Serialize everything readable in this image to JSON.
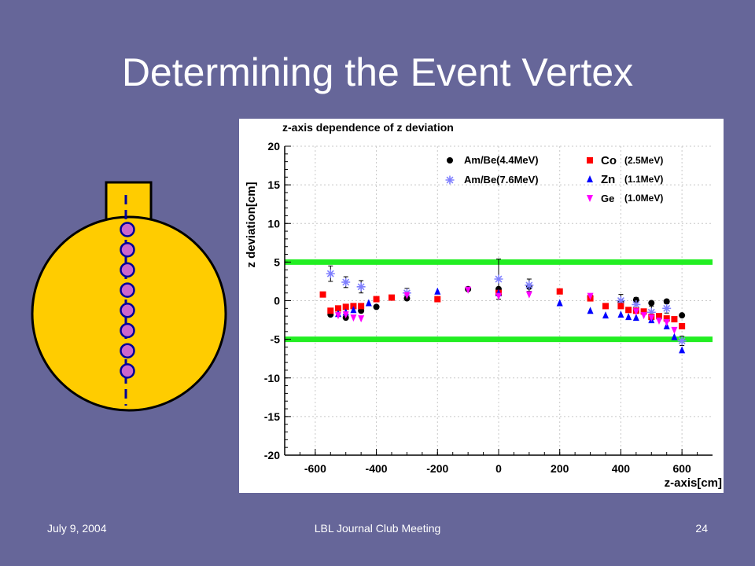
{
  "slide": {
    "title": "Determining the Event Vertex",
    "footer_date": "July 9, 2004",
    "footer_meeting": "LBL Journal Club Meeting",
    "footer_page": "24"
  },
  "colors": {
    "background": "#666699",
    "detector_fill": "#ffcc00",
    "marker_fill": "#cc66cc",
    "axis_line": "#000099",
    "band": "#22ee22"
  },
  "chart_data": {
    "type": "scatter",
    "title": "z-axis dependence of z deviation",
    "xlabel": "z-axis[cm]",
    "ylabel": "z deviation[cm]",
    "xlim": [
      -700,
      700
    ],
    "ylim": [
      -20,
      20
    ],
    "xticks": [
      "-600",
      "-400",
      "-200",
      "0",
      "200",
      "400",
      "600"
    ],
    "yticks": [
      "20",
      "15",
      "10",
      "5",
      "0",
      "-5",
      "-10",
      "-15",
      "-20"
    ],
    "grid": true,
    "reference_lines": [
      5,
      -5
    ],
    "legend": [
      {
        "series": "Am/Be(4.4MeV)",
        "symbol": "●",
        "label": "Am/Be(4.4MeV)",
        "color": "#000000",
        "element": "",
        "energy": ""
      },
      {
        "series": "Am/Be(7.6MeV)",
        "symbol": "✳",
        "label": "Am/Be(7.6MeV)",
        "color": "#8080ff",
        "element": "",
        "energy": ""
      },
      {
        "series": "Co",
        "symbol": "■",
        "label": "",
        "color": "#ff0000",
        "element": "Co",
        "energy": "(2.5MeV)"
      },
      {
        "series": "Zn",
        "symbol": "▲",
        "label": "",
        "color": "#0000ff",
        "element": "Zn",
        "energy": "(1.1MeV)"
      },
      {
        "series": "Ge",
        "symbol": "▼",
        "label": "",
        "color": "#ff00ff",
        "element": "Ge",
        "energy": "(1.0MeV)"
      }
    ],
    "series": [
      {
        "name": "Am/Be(4.4MeV)",
        "marker": "circle",
        "color": "#000000",
        "x": [
          -550,
          -500,
          -450,
          -400,
          -300,
          -100,
          0,
          100,
          300,
          400,
          450,
          500,
          550,
          600
        ],
        "y": [
          -1.8,
          -2.2,
          -1.3,
          -0.8,
          0.3,
          1.5,
          1.5,
          1.8,
          0.5,
          -0.2,
          0.1,
          -0.3,
          -0.1,
          -1.9
        ]
      },
      {
        "name": "Am/Be(7.6MeV)",
        "marker": "star",
        "color": "#8080ff",
        "x": [
          -550,
          -500,
          -450,
          -300,
          0,
          100,
          400,
          450,
          500,
          550,
          600
        ],
        "y": [
          3.5,
          2.4,
          1.8,
          1.0,
          2.8,
          2.0,
          0.0,
          -0.5,
          -1.5,
          -1.0,
          -5.2
        ],
        "err": [
          1.0,
          0.7,
          0.8,
          0.6,
          2.6,
          0.8,
          0.8,
          0.9,
          0.8,
          0.6,
          0.6
        ]
      },
      {
        "name": "Co",
        "marker": "square",
        "color": "#ff0000",
        "x": [
          -575,
          -550,
          -525,
          -500,
          -475,
          -450,
          -400,
          -350,
          -200,
          0,
          200,
          300,
          350,
          400,
          425,
          450,
          475,
          500,
          525,
          550,
          575,
          600
        ],
        "y": [
          0.8,
          -1.3,
          -1.0,
          -0.8,
          -0.7,
          -0.7,
          0.2,
          0.4,
          0.2,
          1.0,
          1.2,
          0.3,
          -0.7,
          -0.7,
          -1.2,
          -1.3,
          -1.4,
          -2.1,
          -2.0,
          -2.3,
          -2.4,
          -3.3
        ]
      },
      {
        "name": "Zn",
        "marker": "triangle-up",
        "color": "#0000ff",
        "x": [
          -525,
          -500,
          -475,
          -425,
          -200,
          0,
          200,
          300,
          350,
          400,
          425,
          450,
          500,
          550,
          575,
          600
        ],
        "y": [
          -1.7,
          -1.5,
          -1.2,
          -0.3,
          1.2,
          1.0,
          -0.3,
          -1.3,
          -1.9,
          -1.8,
          -2.1,
          -2.2,
          -2.5,
          -3.3,
          -4.7,
          -6.4
        ]
      },
      {
        "name": "Ge",
        "marker": "triangle-down",
        "color": "#ff00ff",
        "x": [
          -525,
          -500,
          -475,
          -450,
          -300,
          -100,
          0,
          100,
          300,
          450,
          475,
          500,
          525,
          550,
          575
        ],
        "y": [
          -1.9,
          -1.8,
          -2.2,
          -2.3,
          0.7,
          1.4,
          0.6,
          0.8,
          0.6,
          -1.4,
          -1.9,
          -2.2,
          -2.6,
          -2.8,
          -3.8
        ]
      }
    ]
  }
}
